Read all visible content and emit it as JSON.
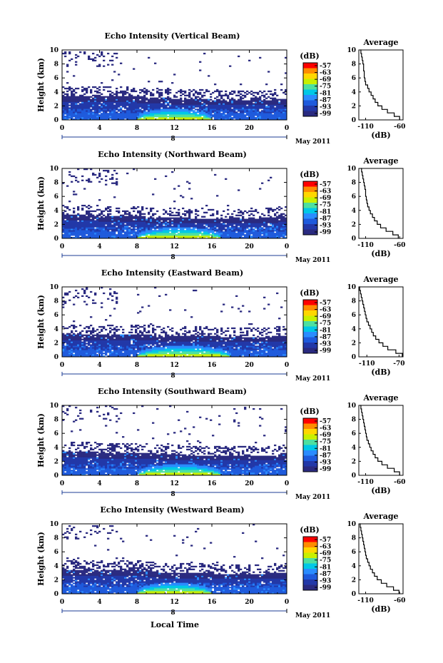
{
  "figure": {
    "xlabel": "Local Time",
    "colorbar_unit": "(dB)",
    "colorbar_ticks": [
      "-57",
      "-63",
      "-69",
      "-75",
      "-81",
      "-87",
      "-93",
      "-99"
    ],
    "colorbar_colors": [
      "#ff0000",
      "#ff8c00",
      "#ffd700",
      "#c8f000",
      "#4de0a0",
      "#00c8e6",
      "#2a8cff",
      "#1e5adc",
      "#2238a8",
      "#2a2a80"
    ],
    "date_label": "May 2011",
    "day_marker": "8",
    "average_title": "Average",
    "average_xlabel": "(dB)"
  },
  "chart_data": [
    {
      "type": "heatmap",
      "title": "Echo Intensity (Vertical Beam)",
      "ylabel": "Height (km)",
      "x_ticks": [
        "0",
        "4",
        "8",
        "12",
        "16",
        "20",
        "0"
      ],
      "xlim": [
        0,
        24
      ],
      "y_ticks": [
        "0",
        "2",
        "4",
        "6",
        "8",
        "10"
      ],
      "ylim": [
        0,
        10
      ],
      "x_unit": "hour (local time)",
      "y_unit": "km",
      "value_unit": "dB",
      "colorbar_range": [
        -99,
        -57
      ],
      "layer_top_km": [
        3.5,
        3.4,
        3.3,
        3.2,
        3.0,
        2.9,
        2.8,
        3.0
      ],
      "layer_top_hours": [
        0,
        4,
        8,
        10,
        13,
        17,
        21,
        24
      ],
      "strong_echo_hours": [
        8,
        16
      ],
      "strong_echo_top_km": 1.2,
      "average_profile": {
        "xticks": [
          "-110",
          "-60"
        ],
        "xlim": [
          -120,
          -55
        ],
        "height_km": [
          0,
          0.5,
          1,
          1.5,
          2,
          2.5,
          3,
          3.5,
          4,
          4.5,
          5,
          5.5,
          6,
          6.5,
          7,
          7.5,
          8,
          8.5,
          9,
          9.5,
          10
        ],
        "intensity_dB": [
          -60,
          -68,
          -78,
          -86,
          -92,
          -96,
          -99,
          -102,
          -105,
          -107,
          -110,
          -111,
          -112,
          -112,
          -113,
          -113,
          -114,
          -115,
          -116,
          -117,
          -118
        ]
      }
    },
    {
      "type": "heatmap",
      "title": "Echo Intensity (Northward Beam)",
      "ylabel": "Height (km)",
      "x_ticks": [
        "0",
        "4",
        "8",
        "12",
        "16",
        "20",
        "0"
      ],
      "xlim": [
        0,
        24
      ],
      "y_ticks": [
        "0",
        "2",
        "4",
        "6",
        "8",
        "10"
      ],
      "ylim": [
        0,
        10
      ],
      "x_unit": "hour (local time)",
      "y_unit": "km",
      "value_unit": "dB",
      "colorbar_range": [
        -99,
        -57
      ],
      "layer_top_km": [
        3.4,
        3.3,
        3.2,
        3.0,
        2.9,
        2.8,
        2.9,
        3.2
      ],
      "layer_top_hours": [
        0,
        4,
        8,
        10,
        13,
        17,
        21,
        24
      ],
      "strong_echo_hours": [
        8,
        17
      ],
      "strong_echo_top_km": 1.2,
      "average_profile": {
        "xticks": [
          "-110",
          "-60"
        ],
        "xlim": [
          -120,
          -55
        ],
        "height_km": [
          0,
          0.5,
          1,
          1.5,
          2,
          2.5,
          3,
          3.5,
          4,
          4.5,
          5,
          5.5,
          6,
          6.5,
          7,
          7.5,
          8,
          8.5,
          9,
          9.5,
          10
        ],
        "intensity_dB": [
          -62,
          -70,
          -80,
          -88,
          -93,
          -97,
          -100,
          -103,
          -105,
          -107,
          -108,
          -109,
          -110,
          -110,
          -111,
          -112,
          -113,
          -114,
          -115,
          -116,
          -117
        ]
      }
    },
    {
      "type": "heatmap",
      "title": "Echo Intensity (Eastward Beam)",
      "ylabel": "Height (km)",
      "x_ticks": [
        "0",
        "4",
        "8",
        "12",
        "16",
        "20",
        "0"
      ],
      "xlim": [
        0,
        24
      ],
      "y_ticks": [
        "0",
        "2",
        "4",
        "6",
        "8",
        "10"
      ],
      "ylim": [
        0,
        10
      ],
      "x_unit": "hour (local time)",
      "y_unit": "km",
      "value_unit": "dB",
      "colorbar_range": [
        -99,
        -57
      ],
      "layer_top_km": [
        3.3,
        3.2,
        3.2,
        3.1,
        3.0,
        2.9,
        2.8,
        3.0
      ],
      "layer_top_hours": [
        0,
        4,
        8,
        10,
        13,
        17,
        21,
        24
      ],
      "strong_echo_hours": [
        8,
        18
      ],
      "strong_echo_top_km": 1.2,
      "average_profile": {
        "xticks": [
          "-110",
          "-70"
        ],
        "xlim": [
          -120,
          -65
        ],
        "height_km": [
          0,
          0.5,
          1,
          1.5,
          2,
          2.5,
          3,
          3.5,
          4,
          4.5,
          5,
          5.5,
          6,
          6.5,
          7,
          7.5,
          8,
          8.5,
          9,
          9.5,
          10
        ],
        "intensity_dB": [
          -66,
          -74,
          -84,
          -90,
          -95,
          -99,
          -102,
          -104,
          -106,
          -108,
          -110,
          -111,
          -112,
          -113,
          -114,
          -115,
          -116,
          -117,
          -118,
          -119,
          -120
        ]
      }
    },
    {
      "type": "heatmap",
      "title": "Echo Intensity (Southward Beam)",
      "ylabel": "Height (km)",
      "x_ticks": [
        "0",
        "4",
        "8",
        "12",
        "16",
        "20",
        "0"
      ],
      "xlim": [
        0,
        24
      ],
      "y_ticks": [
        "0",
        "2",
        "4",
        "6",
        "8",
        "10"
      ],
      "ylim": [
        0,
        10
      ],
      "x_unit": "hour (local time)",
      "y_unit": "km",
      "value_unit": "dB",
      "colorbar_range": [
        -99,
        -57
      ],
      "layer_top_km": [
        3.4,
        3.3,
        3.2,
        3.1,
        2.9,
        2.8,
        2.7,
        3.0
      ],
      "layer_top_hours": [
        0,
        4,
        8,
        10,
        13,
        17,
        21,
        24
      ],
      "strong_echo_hours": [
        8,
        17
      ],
      "strong_echo_top_km": 1.2,
      "average_profile": {
        "xticks": [
          "-110",
          "-60"
        ],
        "xlim": [
          -120,
          -55
        ],
        "height_km": [
          0,
          0.5,
          1,
          1.5,
          2,
          2.5,
          3,
          3.5,
          4,
          4.5,
          5,
          5.5,
          6,
          6.5,
          7,
          7.5,
          8,
          8.5,
          9,
          9.5,
          10
        ],
        "intensity_dB": [
          -60,
          -68,
          -78,
          -86,
          -92,
          -96,
          -99,
          -102,
          -104,
          -106,
          -108,
          -109,
          -110,
          -111,
          -112,
          -113,
          -114,
          -115,
          -116,
          -117,
          -118
        ]
      }
    },
    {
      "type": "heatmap",
      "title": "Echo Intensity (Westward Beam)",
      "ylabel": "Height (km)",
      "x_ticks": [
        "0",
        "4",
        "8",
        "12",
        "16",
        "20",
        "0"
      ],
      "xlim": [
        0,
        24
      ],
      "y_ticks": [
        "0",
        "2",
        "4",
        "6",
        "8",
        "10"
      ],
      "ylim": [
        0,
        10
      ],
      "x_unit": "hour (local time)",
      "y_unit": "km",
      "value_unit": "dB",
      "colorbar_range": [
        -99,
        -57
      ],
      "layer_top_km": [
        3.4,
        3.3,
        3.4,
        3.1,
        3.0,
        2.8,
        2.8,
        3.1
      ],
      "layer_top_hours": [
        0,
        4,
        8,
        10,
        13,
        17,
        21,
        24
      ],
      "strong_echo_hours": [
        8,
        16
      ],
      "strong_echo_top_km": 1.2,
      "average_profile": {
        "xticks": [
          "-110",
          "-60"
        ],
        "xlim": [
          -120,
          -55
        ],
        "height_km": [
          0,
          0.5,
          1,
          1.5,
          2,
          2.5,
          3,
          3.5,
          4,
          4.5,
          5,
          5.5,
          6,
          6.5,
          7,
          7.5,
          8,
          8.5,
          9,
          9.5,
          10
        ],
        "intensity_dB": [
          -61,
          -69,
          -79,
          -87,
          -93,
          -97,
          -100,
          -103,
          -105,
          -107,
          -109,
          -110,
          -111,
          -112,
          -113,
          -114,
          -115,
          -116,
          -117,
          -118,
          -119
        ]
      }
    }
  ]
}
